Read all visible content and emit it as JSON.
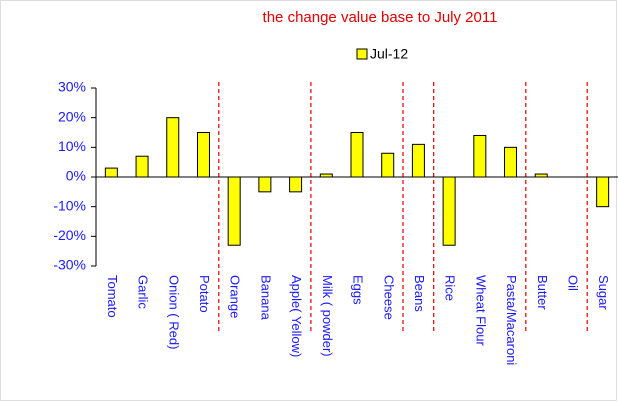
{
  "chart_data": {
    "type": "bar",
    "title": "the change value base to July 2011",
    "categories": [
      "Tomato",
      "Garlic",
      "Onion ( Red)",
      "Potato",
      "Orange",
      "Banana",
      "Apple( Yellow)",
      "Milk ( powder)",
      "Eggs",
      "Cheese",
      "Beans",
      "Rice",
      "Wheat Flour",
      "Pasta/Macaroni",
      "Butter",
      "Oil",
      "Sugar"
    ],
    "series": [
      {
        "name": "Jul-12",
        "color": "#ffff00",
        "values": [
          3,
          7,
          20,
          15,
          -23,
          -5,
          -5,
          1,
          15,
          8,
          11,
          -23,
          14,
          10,
          1,
          0,
          -10
        ]
      }
    ],
    "ylim": [
      -30,
      30
    ],
    "yticks": [
      {
        "value": -30,
        "label": "-30%"
      },
      {
        "value": -20,
        "label": "-20%"
      },
      {
        "value": -10,
        "label": "-10%"
      },
      {
        "value": 0,
        "label": "0%"
      },
      {
        "value": 10,
        "label": "10%"
      },
      {
        "value": 20,
        "label": "20%"
      },
      {
        "value": 30,
        "label": "30%"
      }
    ],
    "legend": "top"
  }
}
